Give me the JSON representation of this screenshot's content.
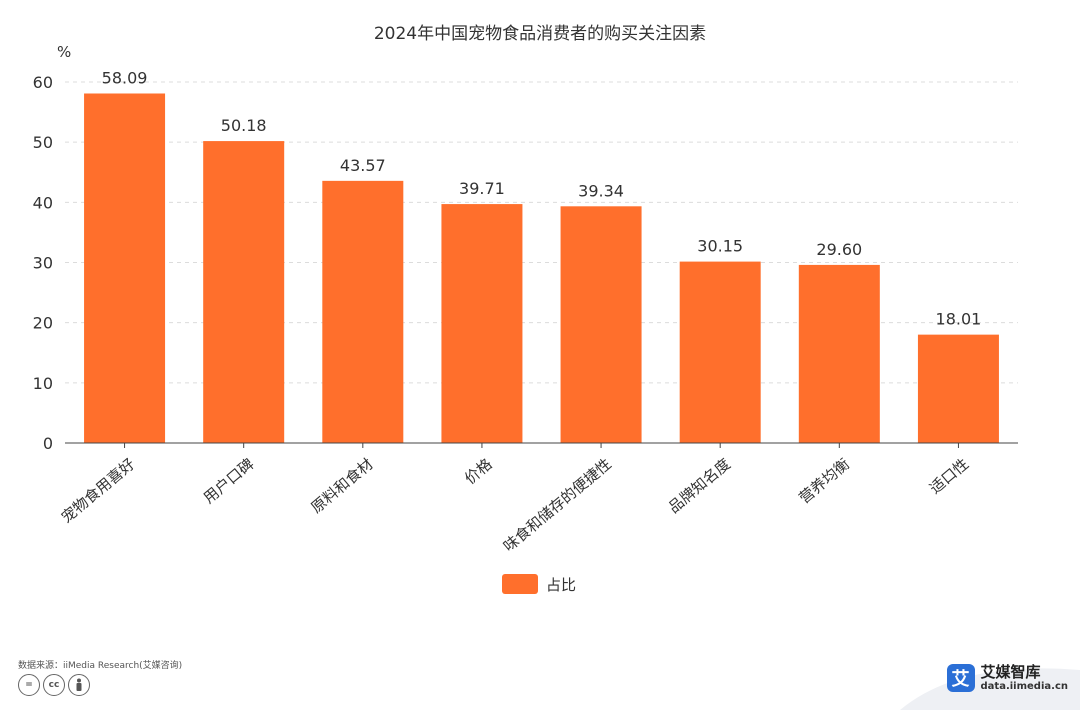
{
  "chart_data": {
    "type": "bar",
    "title": "2024年中国宠物食品消费者的购买关注因素",
    "unit": "%",
    "categories": [
      "宠物食用喜好",
      "用户口碑",
      "原料和食材",
      "价格",
      "味食和储存的便捷性",
      "品牌知名度",
      "营养均衡",
      "适口性"
    ],
    "series": [
      {
        "name": "占比",
        "values": [
          58.09,
          50.18,
          43.57,
          39.71,
          39.34,
          30.15,
          29.6,
          18.01
        ]
      }
    ],
    "value_labels": [
      "58.09",
      "50.18",
      "43.57",
      "39.71",
      "39.34",
      "30.15",
      "29.60",
      "18.01"
    ],
    "ylim": [
      0,
      60
    ],
    "yticks": [
      0,
      10,
      20,
      30,
      40,
      50,
      60
    ],
    "grid": true,
    "legend_position": "bottom-center",
    "bar_color": "#ff6f2c"
  },
  "footer": {
    "source": "数据来源：iiMedia Research(艾媒咨询)",
    "cc_icons": [
      "=",
      "cc",
      "person-icon"
    ]
  },
  "brand": {
    "logo_glyph": "艾",
    "name": "艾媒智库",
    "url": "data.iimedia.cn",
    "color": "#2b6fd6"
  }
}
